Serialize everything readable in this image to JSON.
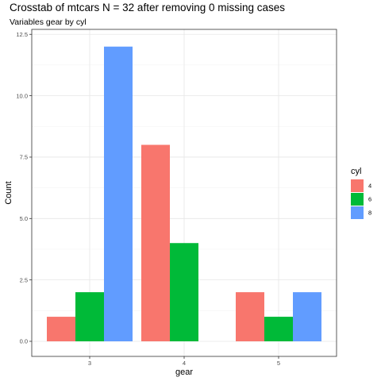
{
  "chart_data": {
    "type": "bar",
    "title": "Crosstab of mtcars N = 32 after removing 0 missing cases",
    "subtitle": "Variables gear by cyl",
    "xlabel": "gear",
    "ylabel": "Count",
    "categories": [
      "3",
      "4",
      "5"
    ],
    "series": [
      {
        "name": "4",
        "color": "#F8766D",
        "values": [
          1,
          8,
          2
        ]
      },
      {
        "name": "6",
        "color": "#00BA38",
        "values": [
          2,
          4,
          1
        ]
      },
      {
        "name": "8",
        "color": "#619CFF",
        "values": [
          12,
          0,
          2
        ]
      }
    ],
    "ylim": [
      0,
      12.5
    ],
    "yticks": [
      0,
      2.5,
      5,
      7.5,
      10,
      12.5
    ],
    "ytick_labels": [
      "0.0",
      "2.5",
      "5.0",
      "7.5",
      "10.0",
      "12.5"
    ],
    "legend_title": "cyl",
    "legend_position": "right",
    "grid": true
  }
}
